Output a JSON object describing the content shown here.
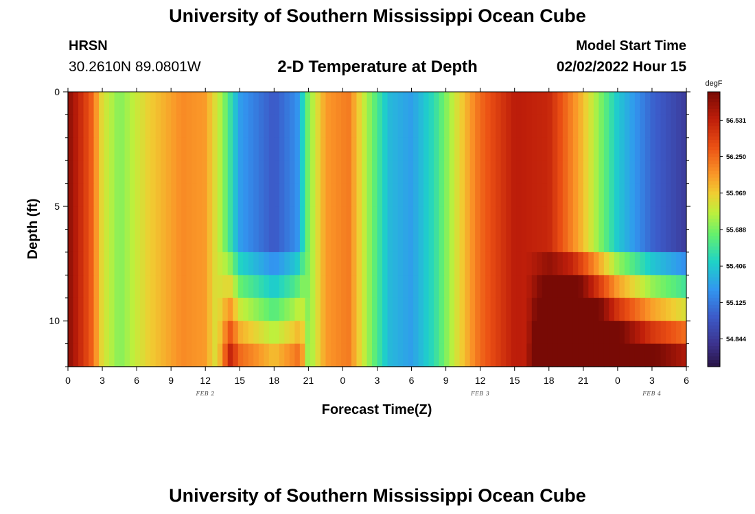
{
  "header": {
    "title": "University of Southern Mississippi Ocean Cube",
    "station_code": "HRSN",
    "station_coords": "30.2610N  89.0801W",
    "chart_title": "2-D Temperature at Depth",
    "model_start_label": "Model Start Time",
    "model_start_value": "02/02/2022 Hour 15"
  },
  "footer": {
    "title": "University of Southern Mississippi Ocean Cube"
  },
  "chart_data": {
    "type": "heatmap",
    "xlabel": "Forecast Time(Z)",
    "ylabel": "Depth (ft)",
    "x_hours_range": [
      0,
      54
    ],
    "ylim": [
      0,
      12
    ],
    "y_reversed": true,
    "x_tick_labels": [
      "0",
      "3",
      "6",
      "9",
      "12",
      "15",
      "18",
      "21",
      "0",
      "3",
      "6",
      "9",
      "12",
      "15",
      "18",
      "21",
      "0",
      "3",
      "6"
    ],
    "y_tick_labels": [
      "0",
      "5",
      "10"
    ],
    "date_labels": [
      {
        "label": "FEB 2",
        "at_hour": 12
      },
      {
        "label": "FEB 3",
        "at_hour": 36
      },
      {
        "label": "FEB 4",
        "at_hour": 51
      }
    ],
    "colorbar": {
      "unit": "degF",
      "range": [
        54.63,
        56.75
      ],
      "ticks": [
        "56.531",
        "56.250",
        "55.969",
        "55.688",
        "55.406",
        "55.125",
        "54.844"
      ]
    },
    "temperature_profile_surface": [
      {
        "hour": 0,
        "degF": 56.7
      },
      {
        "hour": 2,
        "degF": 56.3
      },
      {
        "hour": 3,
        "degF": 55.9
      },
      {
        "hour": 4.5,
        "degF": 55.7
      },
      {
        "hour": 7,
        "degF": 55.95
      },
      {
        "hour": 10,
        "degF": 56.15
      },
      {
        "hour": 12,
        "degF": 56.1
      },
      {
        "hour": 13.5,
        "degF": 55.75
      },
      {
        "hour": 15,
        "degF": 55.25
      },
      {
        "hour": 18,
        "degF": 55.0
      },
      {
        "hour": 20,
        "degF": 55.2
      },
      {
        "hour": 21,
        "degF": 55.7
      },
      {
        "hour": 22.5,
        "degF": 56.1
      },
      {
        "hour": 24.5,
        "degF": 56.2
      },
      {
        "hour": 26,
        "degF": 55.8
      },
      {
        "hour": 28,
        "degF": 55.35
      },
      {
        "hour": 30,
        "degF": 55.25
      },
      {
        "hour": 32,
        "degF": 55.5
      },
      {
        "hour": 34,
        "degF": 55.9
      },
      {
        "hour": 36,
        "degF": 56.25
      },
      {
        "hour": 39,
        "degF": 56.55
      },
      {
        "hour": 42,
        "degF": 56.5
      },
      {
        "hour": 45,
        "degF": 56.0
      },
      {
        "hour": 48,
        "degF": 55.4
      },
      {
        "hour": 51,
        "degF": 55.05
      },
      {
        "hour": 54,
        "degF": 54.85
      }
    ]
  }
}
